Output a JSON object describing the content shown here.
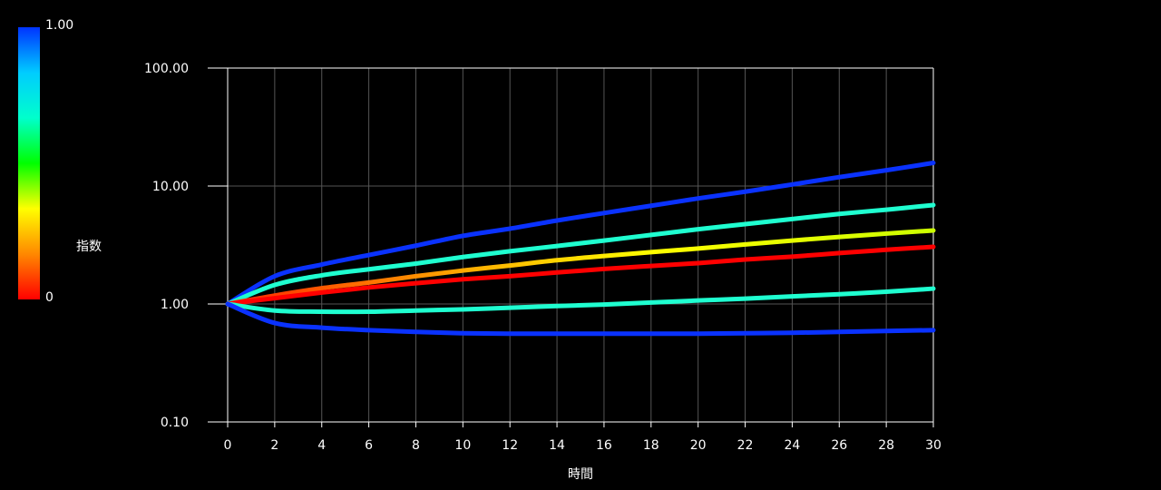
{
  "colorbar": {
    "title": "指数",
    "max_label": "1.00",
    "min_label": "0",
    "stops": [
      "#ff0000",
      "#ff8800",
      "#ffff00",
      "#00ff00",
      "#00ffcc",
      "#00ccff",
      "#0033ff"
    ]
  },
  "chart_data": {
    "type": "line",
    "title": "",
    "xlabel": "時間",
    "ylabel": "",
    "xlim": [
      0,
      30
    ],
    "ylim": [
      0.1,
      100
    ],
    "yscale": "log",
    "grid": true,
    "x_ticks": [
      "0",
      "2",
      "4",
      "6",
      "8",
      "10",
      "12",
      "14",
      "16",
      "18",
      "20",
      "22",
      "24",
      "26",
      "28",
      "30"
    ],
    "y_ticks": [
      "0.10",
      "1.00",
      "10.00",
      "100.00"
    ],
    "x": [
      0,
      2,
      4,
      6,
      8,
      10,
      12,
      14,
      16,
      18,
      20,
      22,
      24,
      26,
      28,
      30
    ],
    "series": [
      {
        "color": "#0a32ff",
        "values": [
          1.0,
          1.72,
          2.16,
          2.6,
          3.12,
          3.78,
          4.35,
          5.1,
          5.9,
          6.8,
          7.85,
          8.95,
          10.3,
          11.9,
          13.6,
          15.7
        ]
      },
      {
        "color": "#1fffd0",
        "values": [
          1.0,
          1.45,
          1.75,
          1.97,
          2.2,
          2.5,
          2.8,
          3.1,
          3.45,
          3.85,
          4.3,
          4.75,
          5.25,
          5.8,
          6.3,
          6.9
        ]
      },
      {
        "color": "#ffff00",
        "values": [
          1.0,
          1.18,
          1.36,
          1.52,
          1.72,
          1.92,
          2.12,
          2.35,
          2.55,
          2.75,
          2.95,
          3.2,
          3.45,
          3.7,
          3.95,
          4.2
        ]
      },
      {
        "color": "#ff0000",
        "values": [
          1.0,
          1.12,
          1.25,
          1.38,
          1.5,
          1.62,
          1.72,
          1.85,
          1.98,
          2.1,
          2.22,
          2.38,
          2.52,
          2.7,
          2.88,
          3.05
        ]
      },
      {
        "color": "#1fffd0",
        "values": [
          1.0,
          0.88,
          0.86,
          0.86,
          0.88,
          0.9,
          0.93,
          0.96,
          0.99,
          1.03,
          1.07,
          1.11,
          1.16,
          1.21,
          1.27,
          1.35
        ]
      },
      {
        "color": "#0a32ff",
        "values": [
          1.0,
          0.69,
          0.63,
          0.6,
          0.58,
          0.565,
          0.56,
          0.56,
          0.56,
          0.56,
          0.56,
          0.565,
          0.57,
          0.58,
          0.59,
          0.6
        ]
      }
    ]
  }
}
